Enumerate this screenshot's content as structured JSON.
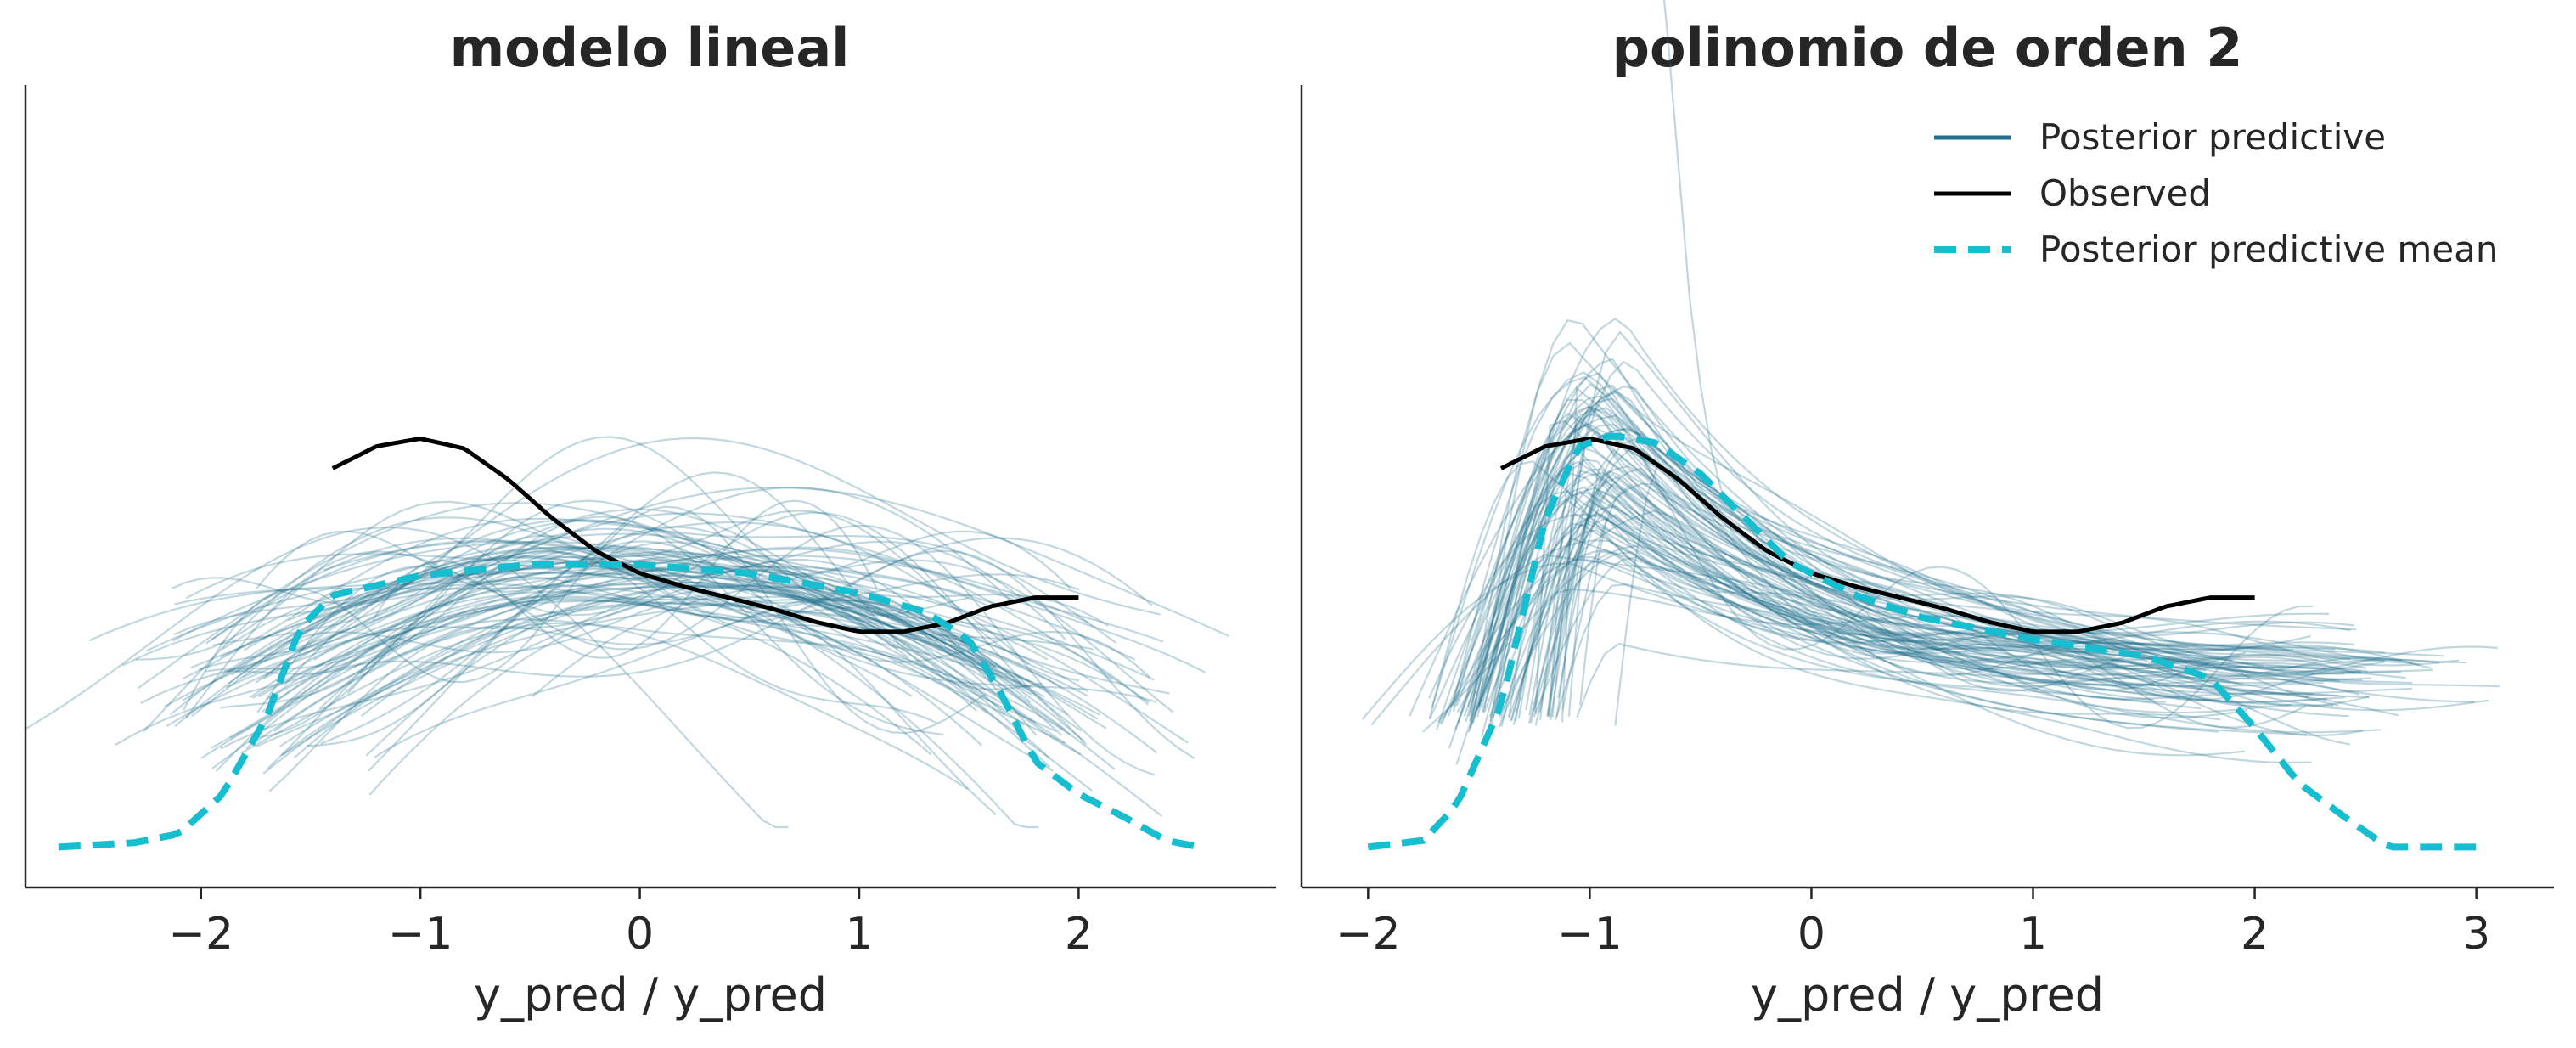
{
  "figure": {
    "xlabel": "y_pred / y_pred"
  },
  "colors": {
    "posterior_predictive": "#1f6e8c",
    "observed": "#000000",
    "posterior_mean": "#17becf",
    "axis": "#262626"
  },
  "chart_data": [
    {
      "type": "line",
      "title": "modelo lineal",
      "xlabel": "y_pred / y_pred",
      "ylabel": "",
      "xlim": [
        -2.8,
        2.9
      ],
      "ylim": [
        0,
        1.0
      ],
      "xticks": [
        -2,
        -1,
        0,
        1,
        2
      ],
      "xtick_labels": [
        "−2",
        "−1",
        "0",
        "1",
        "2"
      ],
      "grid": false,
      "legend": false,
      "series": [
        {
          "name": "Observed",
          "x": [
            -1.4,
            -1.2,
            -1.0,
            -0.8,
            -0.6,
            -0.4,
            -0.2,
            0.0,
            0.2,
            0.4,
            0.6,
            0.8,
            1.0,
            1.2,
            1.4,
            1.6,
            1.8,
            2.0
          ],
          "y": [
            0.345,
            0.365,
            0.372,
            0.363,
            0.335,
            0.3,
            0.27,
            0.25,
            0.238,
            0.228,
            0.218,
            0.206,
            0.197,
            0.197,
            0.205,
            0.22,
            0.228,
            0.228
          ]
        },
        {
          "name": "Posterior predictive mean",
          "x": [
            -2.65,
            -2.3,
            -2.1,
            -1.9,
            -1.7,
            -1.55,
            -1.4,
            -1.0,
            -0.5,
            0.0,
            0.5,
            1.0,
            1.3,
            1.5,
            1.65,
            1.8,
            2.0,
            2.2,
            2.4,
            2.55
          ],
          "y": [
            0.002,
            0.006,
            0.014,
            0.05,
            0.12,
            0.2,
            0.23,
            0.248,
            0.258,
            0.258,
            0.25,
            0.232,
            0.215,
            0.19,
            0.14,
            0.08,
            0.05,
            0.03,
            0.008,
            0.002
          ]
        }
      ],
      "posterior_predictive": {
        "name": "Posterior predictive",
        "count": 90
      }
    },
    {
      "type": "line",
      "title": "polinomio de orden 2",
      "xlabel": "y_pred / y_pred",
      "ylabel": "",
      "xlim": [
        -2.3,
        3.35
      ],
      "ylim": [
        0,
        1.0
      ],
      "xticks": [
        -2,
        -1,
        0,
        1,
        2,
        3
      ],
      "xtick_labels": [
        "−2",
        "−1",
        "0",
        "1",
        "2",
        "3"
      ],
      "grid": false,
      "legend": "top-right",
      "legend_entries": [
        "Posterior predictive",
        "Observed",
        "Posterior predictive mean"
      ],
      "series": [
        {
          "name": "Observed",
          "x": [
            -1.4,
            -1.2,
            -1.0,
            -0.8,
            -0.6,
            -0.4,
            -0.2,
            0.0,
            0.2,
            0.4,
            0.6,
            0.8,
            1.0,
            1.2,
            1.4,
            1.6,
            1.8,
            2.0
          ],
          "y": [
            0.345,
            0.365,
            0.372,
            0.363,
            0.335,
            0.3,
            0.27,
            0.25,
            0.238,
            0.228,
            0.218,
            0.206,
            0.197,
            0.197,
            0.205,
            0.22,
            0.228,
            0.228
          ]
        },
        {
          "name": "Posterior predictive mean",
          "x": [
            -2.0,
            -1.75,
            -1.6,
            -1.4,
            -1.2,
            -1.05,
            -0.9,
            -0.7,
            -0.5,
            -0.3,
            -0.1,
            0.2,
            0.5,
            1.0,
            1.5,
            1.8,
            2.0,
            2.2,
            2.4,
            2.6,
            3.0
          ],
          "y": [
            0.002,
            0.008,
            0.04,
            0.13,
            0.3,
            0.365,
            0.375,
            0.368,
            0.34,
            0.3,
            0.26,
            0.23,
            0.21,
            0.19,
            0.175,
            0.155,
            0.11,
            0.06,
            0.03,
            0.002,
            0.002
          ]
        }
      ],
      "posterior_predictive": {
        "name": "Posterior predictive",
        "count": 90
      }
    }
  ]
}
